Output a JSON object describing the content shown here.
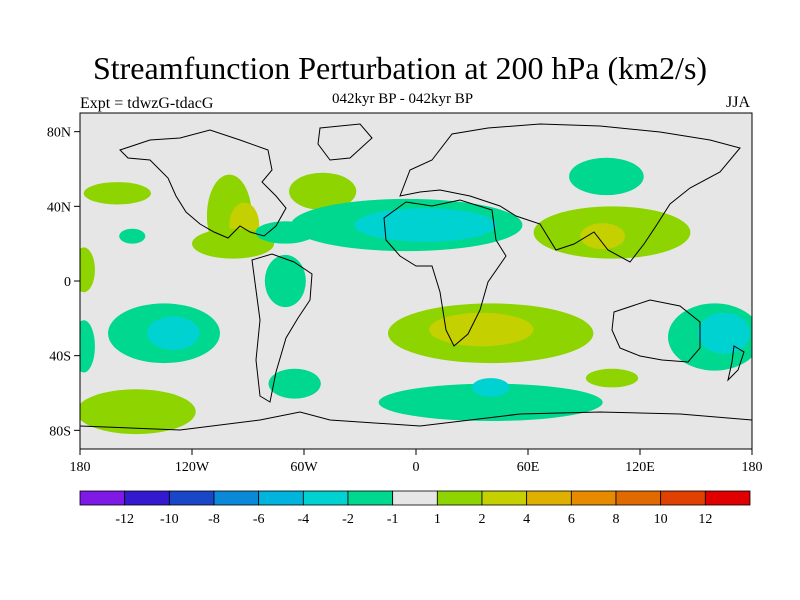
{
  "title": "Streamfunction Perturbation at 200 hPa (km2/s)",
  "left_label": "Expt = tdwzG-tdacG",
  "center_label": "042kyr BP - 042kyr BP",
  "right_label": "JJA",
  "axes": {
    "lat_ticks": [
      {
        "value": 80,
        "label": "80N"
      },
      {
        "value": 40,
        "label": "40N"
      },
      {
        "value": 0,
        "label": "0"
      },
      {
        "value": -40,
        "label": "40S"
      },
      {
        "value": -80,
        "label": "80S"
      }
    ],
    "lon_ticks": [
      {
        "value": 0,
        "label": "180"
      },
      {
        "value": 60,
        "label": "120W"
      },
      {
        "value": 120,
        "label": "60W"
      },
      {
        "value": 180,
        "label": "0"
      },
      {
        "value": 240,
        "label": "60E"
      },
      {
        "value": 300,
        "label": "120E"
      },
      {
        "value": 360,
        "label": "180"
      }
    ]
  },
  "colorbar": {
    "colors": [
      "#7f19e6",
      "#3319d0",
      "#1947c8",
      "#0b88d8",
      "#00b4dd",
      "#00d2d2",
      "#00d890",
      "#e6e6e6",
      "#8ed400",
      "#c4d000",
      "#e0b000",
      "#e68a00",
      "#e06a00",
      "#e04000",
      "#e00000"
    ],
    "labels": [
      "-12",
      "-10",
      "-8",
      "-6",
      "-4",
      "-2",
      "-1",
      "1",
      "2",
      "4",
      "6",
      "8",
      "10",
      "12"
    ]
  },
  "chart_data": {
    "type": "contour_map",
    "variable": "Streamfunction Perturbation at 200 hPa",
    "units": "km2/s",
    "season": "JJA",
    "levels": [
      -12,
      -10,
      -8,
      -6,
      -4,
      -2,
      -1,
      1,
      2,
      4,
      6,
      8,
      10,
      12
    ],
    "lon_range": [
      -180,
      180
    ],
    "lat_range": [
      -90,
      90
    ],
    "regions": [
      {
        "lon": -100,
        "lat": 35,
        "rx": 12,
        "ry": 22,
        "color": "#8ed400"
      },
      {
        "lon": -92,
        "lat": 30,
        "rx": 8,
        "ry": 12,
        "color": "#c4d000"
      },
      {
        "lon": -160,
        "lat": 47,
        "rx": 18,
        "ry": 6,
        "color": "#8ed400"
      },
      {
        "lon": -152,
        "lat": 24,
        "rx": 7,
        "ry": 4,
        "color": "#00d890"
      },
      {
        "lon": -98,
        "lat": 20,
        "rx": 22,
        "ry": 8,
        "color": "#8ed400"
      },
      {
        "lon": -50,
        "lat": 48,
        "rx": 18,
        "ry": 10,
        "color": "#8ed400"
      },
      {
        "lon": -5,
        "lat": 30,
        "rx": 62,
        "ry": 14,
        "color": "#00d890"
      },
      {
        "lon": 5,
        "lat": 30,
        "rx": 38,
        "ry": 9,
        "color": "#00d2d2"
      },
      {
        "lon": -70,
        "lat": 26,
        "rx": 16,
        "ry": 6,
        "color": "#00d890"
      },
      {
        "lon": 105,
        "lat": 26,
        "rx": 42,
        "ry": 14,
        "color": "#8ed400"
      },
      {
        "lon": 100,
        "lat": 24,
        "rx": 12,
        "ry": 7,
        "color": "#c4d000"
      },
      {
        "lon": 102,
        "lat": 56,
        "rx": 20,
        "ry": 10,
        "color": "#00d890"
      },
      {
        "lon": -70,
        "lat": 0,
        "rx": 11,
        "ry": 14,
        "color": "#00d890"
      },
      {
        "lon": -135,
        "lat": -28,
        "rx": 30,
        "ry": 16,
        "color": "#00d890"
      },
      {
        "lon": -130,
        "lat": -28,
        "rx": 14,
        "ry": 9,
        "color": "#00d2d2"
      },
      {
        "lon": -178,
        "lat": -35,
        "rx": 6,
        "ry": 14,
        "color": "#00d890"
      },
      {
        "lon": -178,
        "lat": 6,
        "rx": 6,
        "ry": 12,
        "color": "#8ed400"
      },
      {
        "lon": 40,
        "lat": -28,
        "rx": 55,
        "ry": 16,
        "color": "#8ed400"
      },
      {
        "lon": 35,
        "lat": -26,
        "rx": 28,
        "ry": 9,
        "color": "#c4d000"
      },
      {
        "lon": 160,
        "lat": -30,
        "rx": 25,
        "ry": 18,
        "color": "#00d890"
      },
      {
        "lon": 165,
        "lat": -28,
        "rx": 14,
        "ry": 11,
        "color": "#00d2d2"
      },
      {
        "lon": 105,
        "lat": -52,
        "rx": 14,
        "ry": 5,
        "color": "#8ed400"
      },
      {
        "lon": -65,
        "lat": -55,
        "rx": 14,
        "ry": 8,
        "color": "#00d890"
      },
      {
        "lon": -150,
        "lat": -70,
        "rx": 32,
        "ry": 12,
        "color": "#8ed400"
      },
      {
        "lon": 40,
        "lat": -65,
        "rx": 60,
        "ry": 10,
        "color": "#00d890"
      },
      {
        "lon": 40,
        "lat": -57,
        "rx": 10,
        "ry": 5,
        "color": "#00d2d2"
      }
    ]
  }
}
